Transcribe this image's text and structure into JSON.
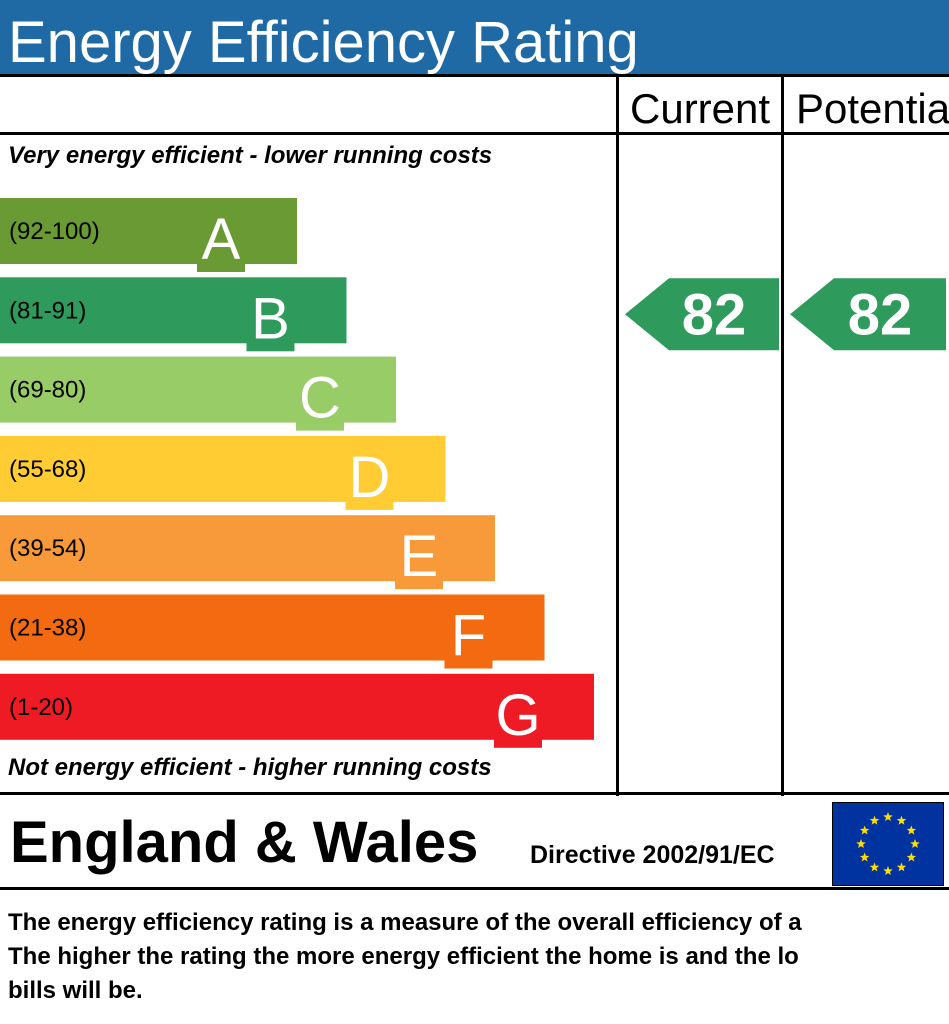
{
  "title": "Energy Efficiency Rating",
  "columns": {
    "current": "Current",
    "potential": "Potentia"
  },
  "top_note": "Very energy efficient - lower running costs",
  "bottom_note": "Not energy efficient - higher running costs",
  "footer": {
    "region": "England & Wales",
    "directive": "Directive 2002/91/EC"
  },
  "description": [
    "The energy efficiency rating is a measure of the overall efficiency of a",
    "The higher the rating the more energy efficient the home is and the lo",
    "bills will be."
  ],
  "colors": {
    "title_bg": "#1f6aa5",
    "eu_blue": "#0033a0",
    "eu_star": "#ffdd00",
    "A": "#6a9a33",
    "B": "#2e9a5c",
    "C": "#98cc66",
    "D": "#ffcc33",
    "E": "#f8993a",
    "F": "#f36a10",
    "G": "#ee1b24"
  },
  "chart_data": {
    "type": "bar",
    "bands": [
      {
        "letter": "A",
        "range": "(92-100)",
        "min": 92,
        "max": 100
      },
      {
        "letter": "B",
        "range": "(81-91)",
        "min": 81,
        "max": 91
      },
      {
        "letter": "C",
        "range": "(69-80)",
        "min": 69,
        "max": 80
      },
      {
        "letter": "D",
        "range": "(55-68)",
        "min": 55,
        "max": 68
      },
      {
        "letter": "E",
        "range": "(39-54)",
        "min": 39,
        "max": 54
      },
      {
        "letter": "F",
        "range": "(21-38)",
        "min": 21,
        "max": 38
      },
      {
        "letter": "G",
        "range": "(1-20)",
        "min": 1,
        "max": 20
      }
    ],
    "current": {
      "value": 82,
      "band": "B"
    },
    "potential": {
      "value": 82,
      "band": "B"
    }
  }
}
